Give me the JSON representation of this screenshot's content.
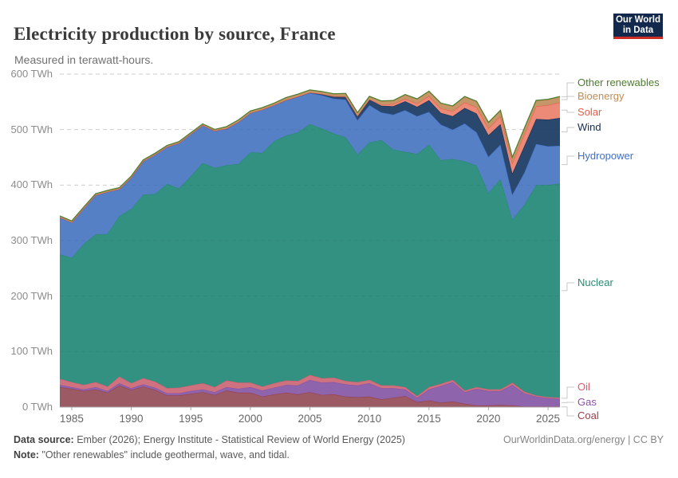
{
  "header": {
    "title": "Electricity production by source, France",
    "subtitle": "Measured in terawatt-hours.",
    "logo": {
      "line1": "Our World",
      "line2": "in Data",
      "bg": "#12284C",
      "accent": "#CD2D26"
    }
  },
  "chart_data": {
    "type": "area",
    "stacked": true,
    "title": "Electricity production by source, France",
    "ylabel": "terawatt-hours",
    "ylim": [
      0,
      600
    ],
    "grid": true,
    "legend_position": "right",
    "ytick_values": [
      0,
      100,
      200,
      300,
      400,
      500,
      600
    ],
    "ytick_suffix": " TWh",
    "xticks": [
      1985,
      1990,
      1995,
      2000,
      2005,
      2010,
      2015,
      2020,
      2025
    ],
    "years": [
      1984,
      1985,
      1986,
      1987,
      1988,
      1989,
      1990,
      1991,
      1992,
      1993,
      1994,
      1995,
      1996,
      1997,
      1998,
      1999,
      2000,
      2001,
      2002,
      2003,
      2004,
      2005,
      2006,
      2007,
      2008,
      2009,
      2010,
      2011,
      2012,
      2013,
      2014,
      2015,
      2016,
      2017,
      2018,
      2019,
      2020,
      2021,
      2022,
      2023,
      2024,
      2025,
      2026
    ],
    "series": [
      {
        "name": "Coal",
        "fill": "#9C5B64",
        "line": "#9A3E49",
        "values": [
          36,
          33,
          29,
          32,
          26,
          39,
          31,
          37,
          31,
          21,
          21,
          24,
          27,
          22,
          30,
          26,
          26,
          19,
          23,
          26,
          23,
          27,
          22,
          23,
          19,
          18,
          19,
          14,
          17,
          20,
          9,
          12,
          8,
          10,
          6,
          3,
          3,
          4,
          3,
          1,
          1,
          1,
          1
        ]
      },
      {
        "name": "Gas",
        "fill": "#8E64AC",
        "line": "#8952A5",
        "values": [
          4,
          3,
          3,
          4,
          3,
          4,
          3,
          4,
          4,
          4,
          4,
          5,
          5,
          5,
          6,
          7,
          10,
          11,
          12,
          14,
          16,
          22,
          22,
          22,
          22,
          21,
          24,
          20,
          17,
          12,
          8,
          20,
          30,
          35,
          21,
          30,
          26,
          25,
          37,
          24,
          18,
          15,
          14
        ]
      },
      {
        "name": "Oil",
        "fill": "#CE7280",
        "line": "#D75C6E",
        "values": [
          11,
          9,
          8,
          9,
          8,
          12,
          9,
          11,
          11,
          9,
          10,
          10,
          11,
          9,
          12,
          11,
          8,
          7,
          8,
          8,
          8,
          9,
          8,
          8,
          6,
          6,
          6,
          5,
          5,
          4,
          3,
          4,
          4,
          4,
          3,
          3,
          3,
          3,
          4,
          3,
          2,
          2,
          2
        ]
      },
      {
        "name": "Nuclear",
        "fill": "#339181",
        "line": "#2A8A70",
        "values": [
          224,
          224,
          254,
          266,
          275,
          289,
          314,
          331,
          338,
          368,
          359,
          377,
          397,
          395,
          388,
          394,
          415,
          421,
          436,
          441,
          448,
          452,
          450,
          440,
          439,
          410,
          428,
          442,
          425,
          424,
          436,
          437,
          403,
          398,
          413,
          399,
          354,
          379,
          294,
          336,
          379,
          382,
          386
        ]
      },
      {
        "name": "Hydropower",
        "fill": "#5580C6",
        "line": "#3D70C8",
        "values": [
          67,
          64,
          64,
          71,
          76,
          49,
          57,
          60,
          71,
          67,
          82,
          76,
          68,
          67,
          66,
          76,
          71,
          78,
          65,
          64,
          64,
          56,
          60,
          63,
          68,
          62,
          67,
          50,
          63,
          75,
          68,
          59,
          64,
          53,
          68,
          60,
          65,
          62,
          45,
          58,
          74,
          70,
          68
        ]
      },
      {
        "name": "Wind",
        "fill": "#2A486E",
        "line": "#152D53",
        "values": [
          0,
          0,
          0,
          0,
          0,
          0,
          0,
          0,
          0,
          0,
          0,
          0,
          0,
          0,
          0,
          0,
          0.1,
          0.1,
          0.3,
          0.4,
          0.6,
          1,
          2.2,
          4,
          5.7,
          7.9,
          9.9,
          12,
          15,
          16,
          17,
          21,
          21,
          24,
          28,
          34,
          39,
          37,
          38,
          48,
          45,
          48,
          50
        ]
      },
      {
        "name": "Solar",
        "fill": "#EC8A77",
        "line": "#E4604D",
        "values": [
          0,
          0,
          0,
          0,
          0,
          0,
          0,
          0,
          0,
          0,
          0,
          0,
          0,
          0,
          0,
          0,
          0,
          0,
          0,
          0,
          0,
          0,
          0,
          0,
          0,
          0.2,
          0.6,
          2.1,
          4,
          4.7,
          5.9,
          7.7,
          8.3,
          9.2,
          10.2,
          11.6,
          12.6,
          14.3,
          18.6,
          21.5,
          23,
          26,
          28
        ]
      },
      {
        "name": "Bioenergy",
        "fill": "#C59667",
        "line": "#BE8C58",
        "values": [
          2,
          2,
          2,
          2,
          2,
          2,
          2,
          2,
          2,
          2,
          2,
          2,
          2,
          2,
          3,
          3,
          3,
          3,
          3,
          4,
          4,
          4,
          4,
          4,
          5,
          5,
          5,
          6,
          6,
          7,
          8,
          8,
          9,
          9,
          10,
          10,
          10,
          10,
          10,
          10,
          10,
          10,
          10
        ]
      },
      {
        "name": "Other renewables",
        "fill": "#5E8B43",
        "line": "#4D7C2E",
        "values": [
          0.4,
          0.4,
          0.4,
          0.4,
          0.4,
          0.4,
          0.4,
          0.4,
          0.4,
          0.4,
          0.4,
          0.4,
          0.4,
          0.4,
          0.4,
          0.4,
          0.4,
          0.4,
          0.4,
          0.4,
          0.4,
          0.5,
          0.5,
          0.5,
          0.5,
          0.5,
          0.5,
          0.5,
          0.5,
          0.5,
          0.5,
          0.5,
          0.5,
          0.5,
          0.5,
          0.5,
          0.5,
          0.6,
          0.6,
          0.6,
          0.6,
          0.6,
          0.6
        ]
      }
    ]
  },
  "footer": {
    "source_label": "Data source:",
    "source_text": "Ember (2026); Energy Institute - Statistical Review of World Energy (2025)",
    "note_label": "Note:",
    "note_text": "\"Other renewables\" include geothermal, wave, and tidal.",
    "credit": "OurWorldinData.org/energy | CC BY"
  }
}
